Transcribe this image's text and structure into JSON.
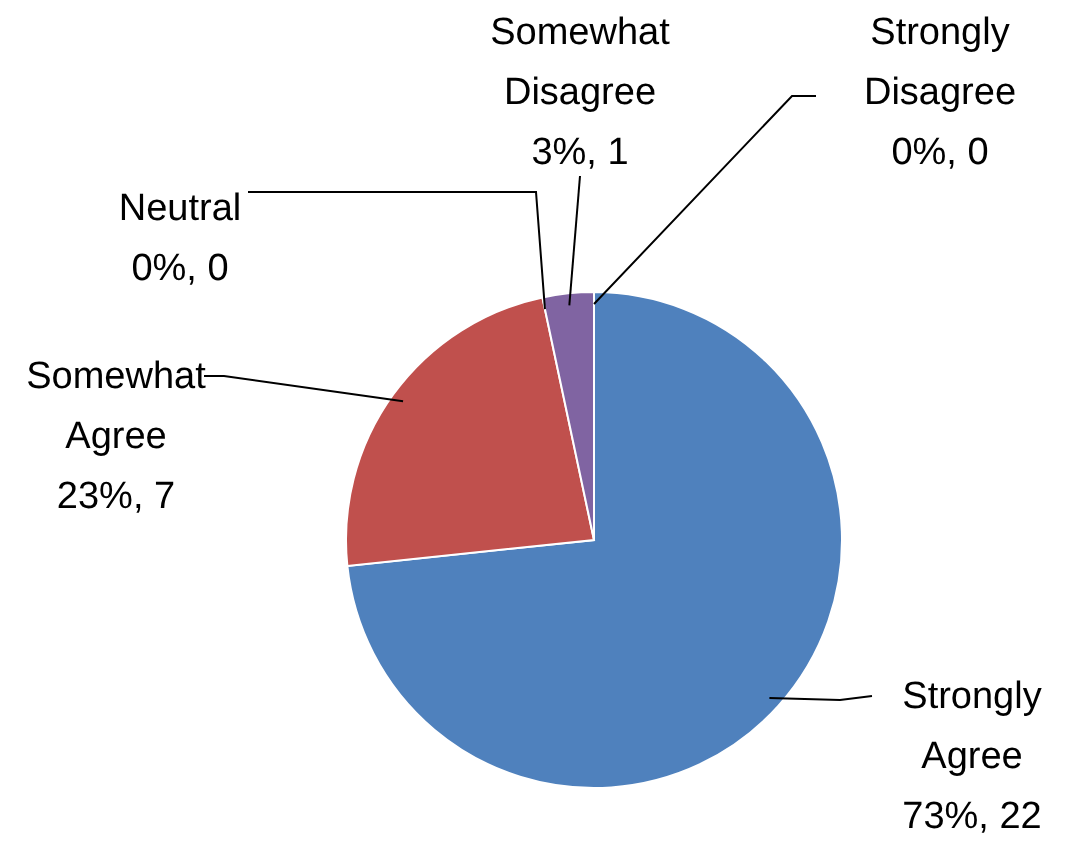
{
  "chart_data": {
    "type": "pie",
    "categories": [
      "Strongly Agree",
      "Somewhat Agree",
      "Neutral",
      "Somewhat Disagree",
      "Strongly Disagree"
    ],
    "values": [
      22,
      7,
      0,
      1,
      0
    ],
    "colors": [
      "#4f81bd",
      "#c0504d",
      null,
      "#8064a2",
      null
    ],
    "value_labels": [
      "73%, 22",
      "23%, 7",
      "0%, 0",
      "3%, 1",
      "0%, 0"
    ]
  }
}
